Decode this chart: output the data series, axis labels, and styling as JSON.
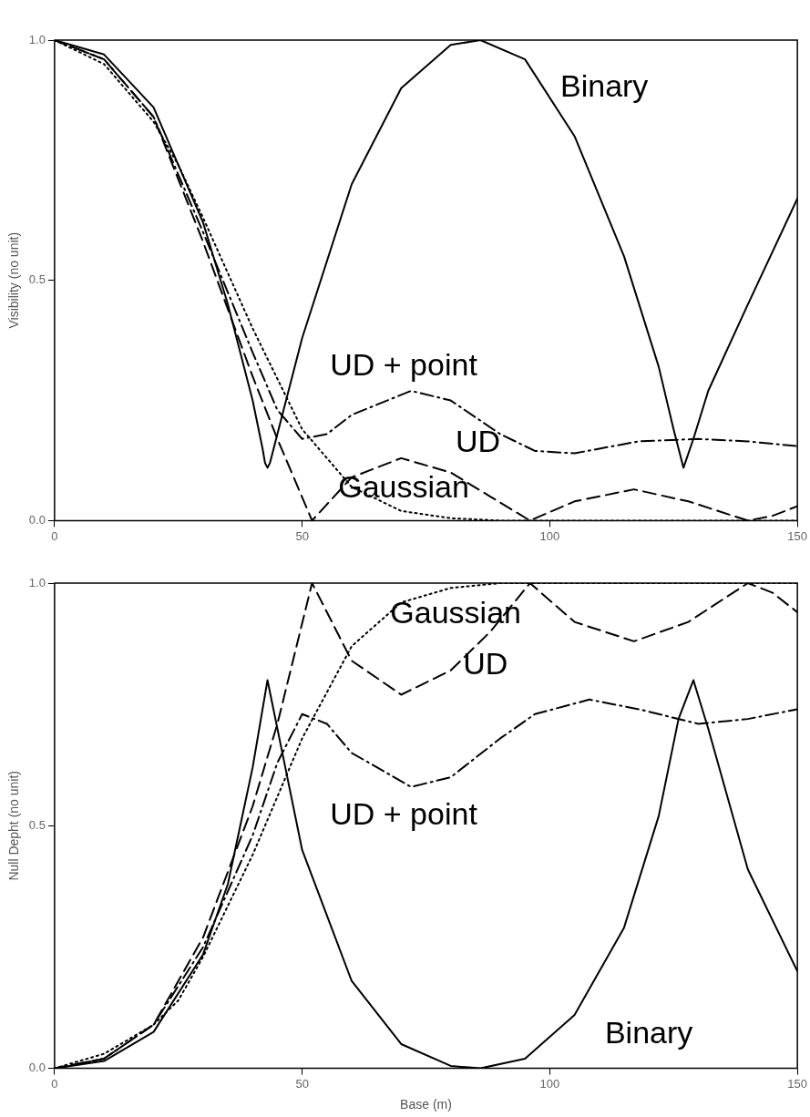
{
  "chart_data": [
    {
      "type": "line",
      "ylabel": "Visibility (no unit)",
      "xlim": [
        0,
        150
      ],
      "ylim": [
        0,
        1
      ],
      "xticks": [
        0,
        50,
        100,
        150
      ],
      "yticks": [
        {
          "value": 0,
          "label": "0.0"
        },
        {
          "value": 0.5,
          "label": "0.5"
        },
        {
          "value": 1,
          "label": "1.0"
        }
      ],
      "grid": false,
      "legend": false,
      "series": [
        {
          "name": "Binary",
          "color": "#000000",
          "line_style": "solid",
          "x": [
            0,
            10,
            20,
            30,
            35,
            40,
            42,
            42.5,
            43,
            43.5,
            44,
            46,
            50,
            60,
            70,
            80,
            86,
            95,
            105,
            115,
            122,
            125,
            127,
            129,
            132,
            140,
            150
          ],
          "values": [
            1.0,
            0.97,
            0.86,
            0.62,
            0.45,
            0.25,
            0.15,
            0.12,
            0.11,
            0.12,
            0.14,
            0.22,
            0.38,
            0.7,
            0.9,
            0.99,
            1.0,
            0.96,
            0.8,
            0.55,
            0.32,
            0.19,
            0.11,
            0.17,
            0.27,
            0.45,
            0.67
          ]
        },
        {
          "name": "Gaussian",
          "color": "#000000",
          "line_style": "dotted",
          "x": [
            0,
            10,
            20,
            25,
            30,
            40,
            50,
            60,
            70,
            80,
            90,
            100,
            150
          ],
          "values": [
            1.0,
            0.95,
            0.83,
            0.74,
            0.63,
            0.4,
            0.19,
            0.07,
            0.02,
            0.005,
            0,
            0,
            0
          ]
        },
        {
          "name": "UD",
          "color": "#000000",
          "line_style": "dashed",
          "x": [
            0,
            10,
            20,
            30,
            40,
            45,
            52,
            60,
            70,
            80,
            88,
            96,
            105,
            117,
            128,
            140,
            145,
            150
          ],
          "values": [
            1.0,
            0.96,
            0.84,
            0.58,
            0.3,
            0.17,
            0,
            0.09,
            0.13,
            0.1,
            0.05,
            0,
            0.04,
            0.065,
            0.04,
            0,
            0.01,
            0.03
          ]
        },
        {
          "name": "UD + point",
          "color": "#000000",
          "line_style": "dashdot",
          "x": [
            0,
            10,
            20,
            30,
            40,
            45,
            50,
            55,
            60,
            72,
            80,
            90,
            97,
            105,
            118,
            130,
            140,
            150
          ],
          "values": [
            1.0,
            0.96,
            0.84,
            0.6,
            0.35,
            0.23,
            0.17,
            0.18,
            0.22,
            0.27,
            0.25,
            0.18,
            0.145,
            0.14,
            0.165,
            0.17,
            0.165,
            0.155
          ]
        }
      ],
      "data_labels": false
    },
    {
      "type": "line",
      "xlabel": "Base (m)",
      "ylabel": "Null Depht (no unit)",
      "xlim": [
        0,
        150
      ],
      "ylim": [
        0,
        1
      ],
      "xticks": [
        0,
        50,
        100,
        150
      ],
      "yticks": [
        {
          "value": 0,
          "label": "0.0"
        },
        {
          "value": 0.5,
          "label": "0.5"
        },
        {
          "value": 1,
          "label": "1.0"
        }
      ],
      "grid": false,
      "legend": false,
      "series": [
        {
          "name": "Binary",
          "color": "#000000",
          "line_style": "solid",
          "x": [
            0,
            10,
            20,
            30,
            35,
            40,
            43,
            46,
            50,
            60,
            70,
            80,
            86,
            95,
            105,
            115,
            122,
            126,
            129,
            132,
            140,
            150
          ],
          "values": [
            0,
            0.015,
            0.075,
            0.235,
            0.38,
            0.62,
            0.8,
            0.65,
            0.45,
            0.18,
            0.05,
            0.005,
            0,
            0.02,
            0.11,
            0.29,
            0.52,
            0.72,
            0.8,
            0.7,
            0.41,
            0.2
          ]
        },
        {
          "name": "Gaussian",
          "color": "#000000",
          "line_style": "dotted",
          "x": [
            0,
            10,
            20,
            25,
            30,
            40,
            50,
            60,
            70,
            80,
            90,
            100,
            150
          ],
          "values": [
            0,
            0.03,
            0.09,
            0.14,
            0.23,
            0.44,
            0.68,
            0.87,
            0.96,
            0.99,
            1.0,
            1.0,
            1.0
          ]
        },
        {
          "name": "UD",
          "color": "#000000",
          "line_style": "dashed",
          "x": [
            0,
            10,
            20,
            30,
            40,
            45,
            52,
            60,
            70,
            80,
            88,
            96,
            105,
            117,
            128,
            140,
            145,
            150
          ],
          "values": [
            0,
            0.02,
            0.09,
            0.27,
            0.54,
            0.71,
            1.0,
            0.84,
            0.77,
            0.82,
            0.9,
            1.0,
            0.92,
            0.88,
            0.92,
            1.0,
            0.98,
            0.94
          ]
        },
        {
          "name": "UD + point",
          "color": "#000000",
          "line_style": "dashdot",
          "x": [
            0,
            10,
            20,
            30,
            40,
            45,
            50,
            55,
            60,
            72,
            80,
            90,
            97,
            108,
            118,
            130,
            140,
            150
          ],
          "values": [
            0,
            0.02,
            0.09,
            0.25,
            0.48,
            0.63,
            0.73,
            0.71,
            0.65,
            0.58,
            0.6,
            0.68,
            0.73,
            0.76,
            0.74,
            0.71,
            0.72,
            0.74
          ]
        }
      ],
      "data_labels": false
    }
  ]
}
